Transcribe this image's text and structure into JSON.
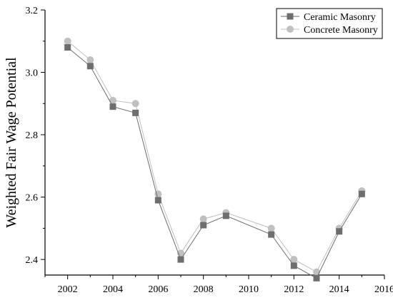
{
  "chart_data": {
    "type": "line",
    "title": "",
    "xlabel": "",
    "ylabel": "Weighted Fair Wage Potential",
    "xlim": [
      2001,
      2016
    ],
    "ylim": [
      2.35,
      3.2
    ],
    "x_ticks": [
      2002,
      2004,
      2006,
      2008,
      2010,
      2012,
      2014,
      2016
    ],
    "y_ticks": [
      2.4,
      2.6,
      2.8,
      3.0,
      3.2
    ],
    "y_tick_labels": [
      "2.4",
      "2.6",
      "2.8",
      "3.0",
      "3.2"
    ],
    "grid": false,
    "legend_position": "top-right",
    "series": [
      {
        "name": "Ceramic Masonry",
        "marker": "square",
        "color": "#6e6e6e",
        "x": [
          2002,
          2003,
          2004,
          2005,
          2006,
          2007,
          2008,
          2009,
          2011,
          2012,
          2013,
          2014,
          2015
        ],
        "y": [
          3.08,
          3.02,
          2.89,
          2.87,
          2.59,
          2.4,
          2.51,
          2.54,
          2.48,
          2.38,
          2.34,
          2.49,
          2.61
        ]
      },
      {
        "name": "Concrete Masonry",
        "marker": "circle",
        "color": "#c0c0c0",
        "x": [
          2002,
          2003,
          2004,
          2005,
          2006,
          2007,
          2008,
          2009,
          2011,
          2012,
          2013,
          2014,
          2015
        ],
        "y": [
          3.1,
          3.04,
          2.91,
          2.9,
          2.61,
          2.42,
          2.53,
          2.55,
          2.5,
          2.4,
          2.36,
          2.5,
          2.62
        ]
      }
    ]
  }
}
